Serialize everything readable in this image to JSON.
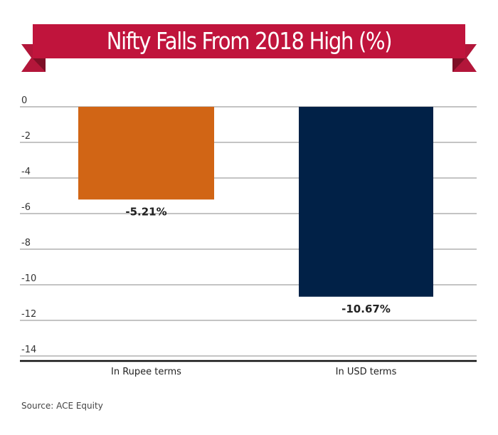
{
  "chart_data": {
    "type": "bar",
    "title": "Nifty Falls From 2018 High (%)",
    "categories": [
      "In Rupee terms",
      "In USD terms"
    ],
    "values": [
      -5.21,
      -10.67
    ],
    "data_labels": [
      "-5.21%",
      "-10.67%"
    ],
    "colors": [
      "#d16515",
      "#012147"
    ],
    "xlabel": "",
    "ylabel": "",
    "ylim": [
      -14,
      0
    ],
    "yticks": [
      0,
      -2,
      -4,
      -6,
      -8,
      -10,
      -12,
      -14
    ],
    "ytick_labels": [
      "0",
      "-2",
      "-4",
      "-6",
      "-8",
      "-10",
      "-12",
      "-14"
    ],
    "grid": true,
    "legend": "none"
  },
  "banner": {
    "color": "#c0143c",
    "tail_color": "#9e1430"
  },
  "source": "Source: ACE Equity"
}
